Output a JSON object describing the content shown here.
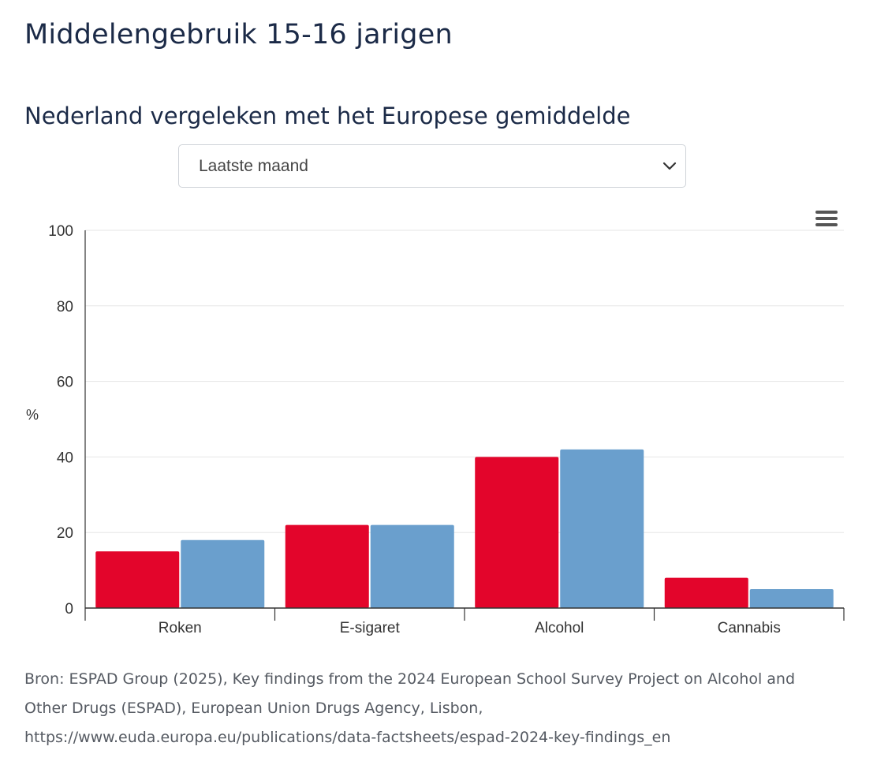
{
  "page": {
    "title": "Middelengebruik 15-16 jarigen"
  },
  "selector": {
    "selected": "Laatste maand",
    "icon": "chevron-down-icon"
  },
  "menu": {
    "icon": "hamburger-menu-icon"
  },
  "source": {
    "line1": "Bron: ESPAD Group (2025), Key findings from the 2024 European School Survey Project on Alcohol and",
    "line2": "Other Drugs (ESPAD), European Union Drugs Agency, Lisbon,",
    "line3": "https://www.euda.europa.eu/publications/data-factsheets/espad-2024-key-findings_en"
  },
  "chart_data": {
    "type": "bar",
    "title": "Nederland vergeleken met het Europese gemiddelde",
    "xlabel": "",
    "ylabel": "%",
    "ylim": [
      0,
      100
    ],
    "yticks": [
      "0",
      "20",
      "40",
      "60",
      "80",
      "100"
    ],
    "grid": true,
    "legend": "none",
    "categories": [
      "Roken",
      "E-sigaret",
      "Alcohol",
      "Cannabis"
    ],
    "series": [
      {
        "values": [
          15,
          22,
          40,
          8
        ],
        "color": "#e3052b"
      },
      {
        "values": [
          18,
          22,
          42,
          5
        ],
        "color": "#6a9fcd"
      }
    ]
  }
}
